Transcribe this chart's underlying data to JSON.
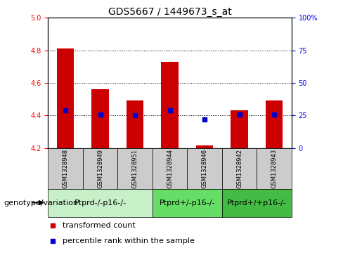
{
  "title": "GDS5667 / 1449673_s_at",
  "samples": [
    "GSM1328948",
    "GSM1328949",
    "GSM1328951",
    "GSM1328944",
    "GSM1328946",
    "GSM1328942",
    "GSM1328943"
  ],
  "bar_bottoms": [
    4.2,
    4.2,
    4.2,
    4.2,
    4.2,
    4.2,
    4.2
  ],
  "bar_tops": [
    4.81,
    4.56,
    4.49,
    4.73,
    4.215,
    4.43,
    4.49
  ],
  "percentile_values": [
    4.43,
    4.405,
    4.402,
    4.43,
    4.375,
    4.405,
    4.407
  ],
  "ylim": [
    4.2,
    5.0
  ],
  "yticks_left": [
    4.2,
    4.4,
    4.6,
    4.8,
    5.0
  ],
  "yticks_right": [
    0,
    25,
    50,
    75,
    100
  ],
  "right_tick_labels": [
    "0",
    "25",
    "50",
    "75",
    "100%"
  ],
  "gridlines": [
    4.4,
    4.6,
    4.8
  ],
  "bar_color": "#cc0000",
  "percentile_color": "#0000cc",
  "groups": [
    {
      "label": "Ptprd-/-p16-/-",
      "start": 0,
      "end": 3,
      "color": "#c8f0c8"
    },
    {
      "label": "Ptprd+/-p16-/-",
      "start": 3,
      "end": 5,
      "color": "#66dd66"
    },
    {
      "label": "Ptprd+/+p16-/-",
      "start": 5,
      "end": 7,
      "color": "#44bb44"
    }
  ],
  "genotype_label": "genotype/variation",
  "legend_bar_label": "transformed count",
  "legend_dot_label": "percentile rank within the sample",
  "sample_box_color": "#cccccc",
  "title_fontsize": 10,
  "tick_fontsize": 7,
  "sample_fontsize": 6,
  "group_label_fontsize": 8,
  "legend_fontsize": 8,
  "genotype_fontsize": 8,
  "bar_width": 0.5
}
